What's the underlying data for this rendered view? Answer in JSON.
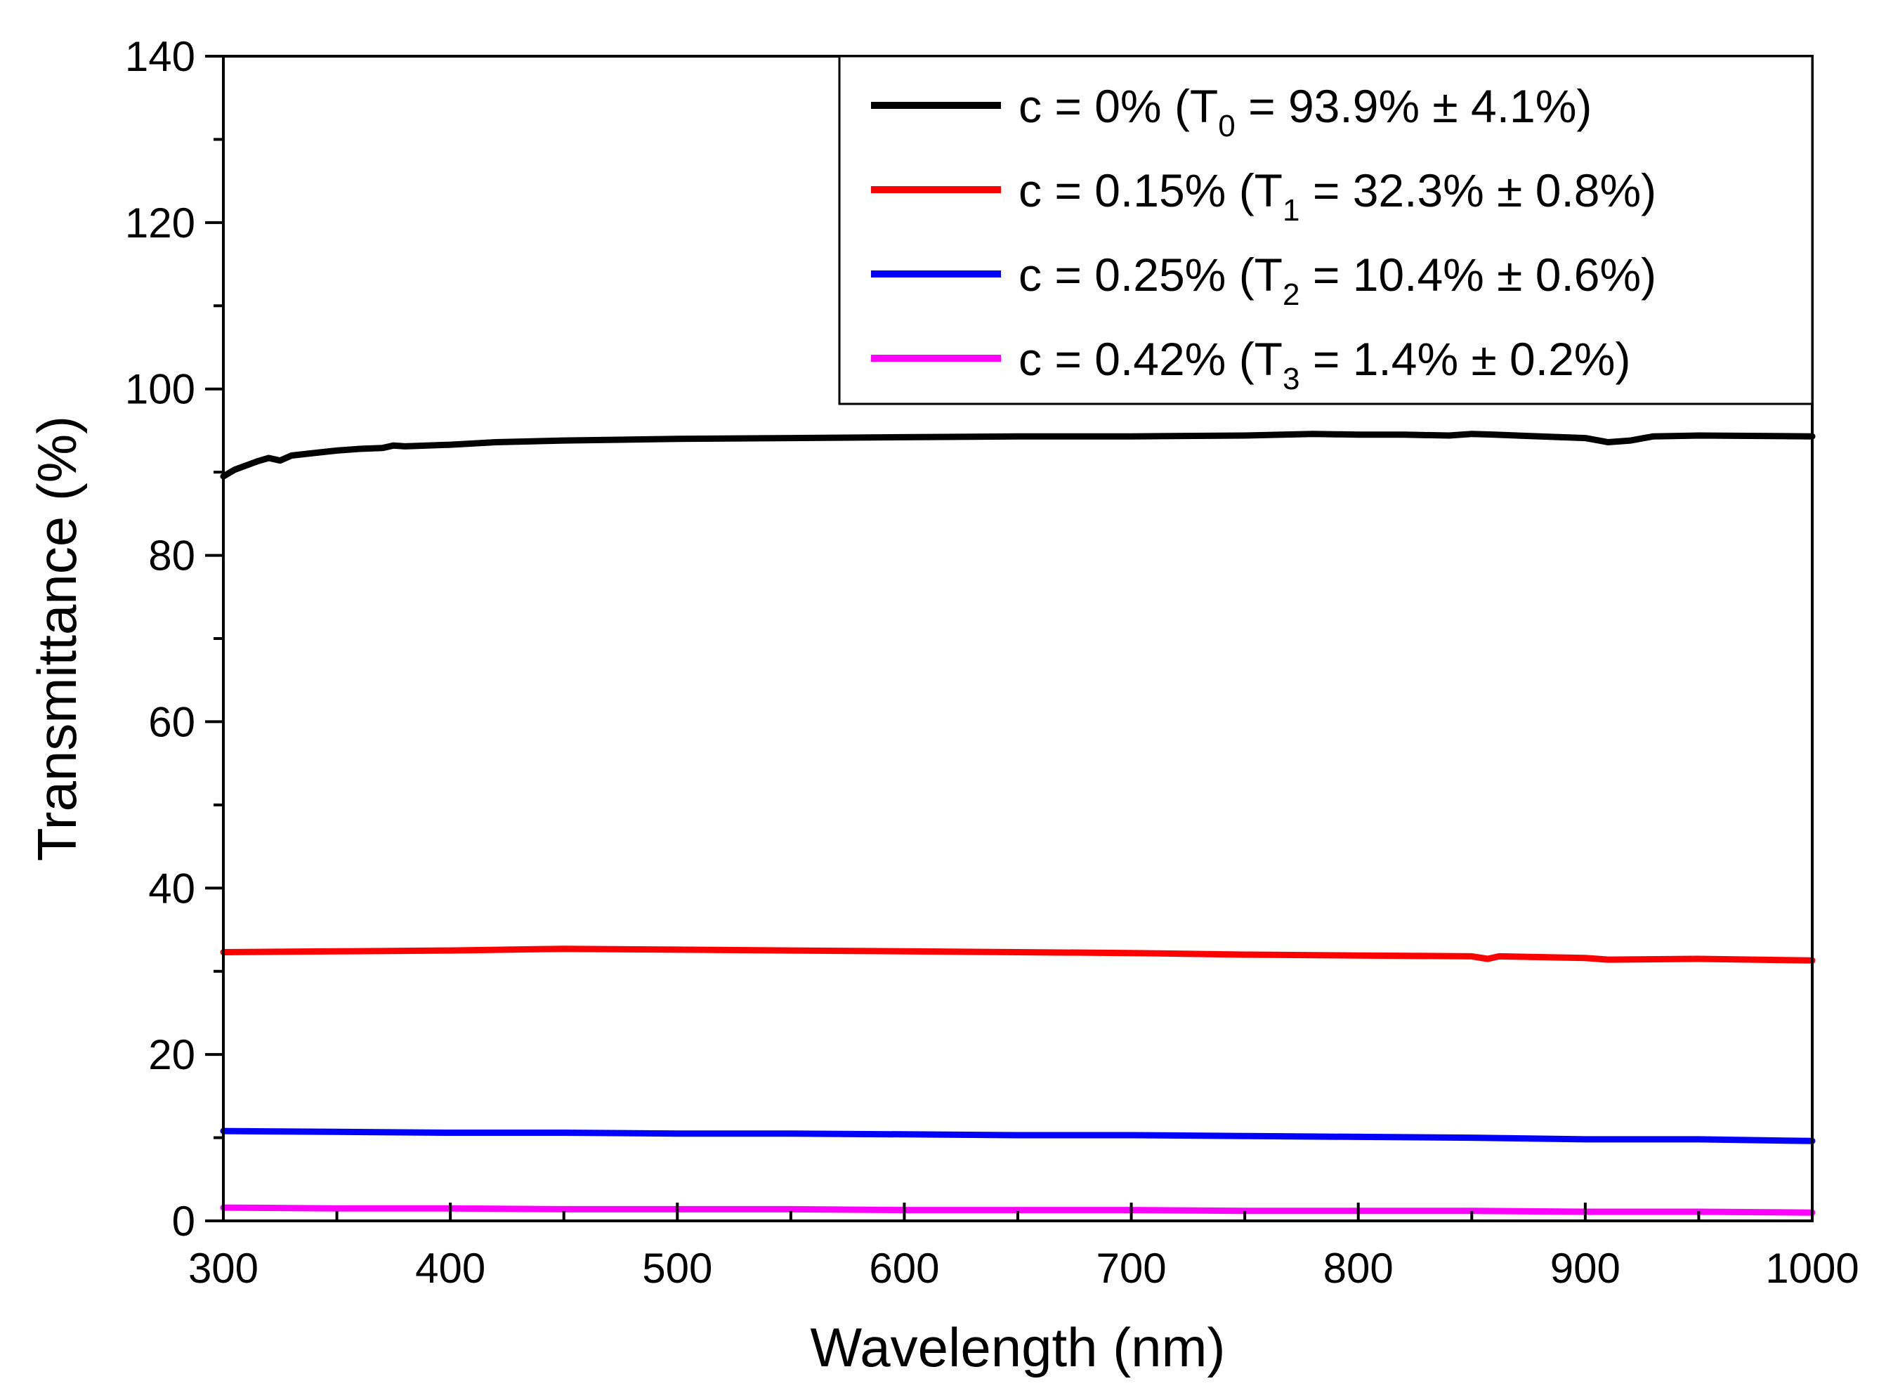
{
  "chart_data": {
    "type": "line",
    "title": "",
    "xlabel": "Wavelength (nm)",
    "ylabel": "Transmittance (%)",
    "xlim": [
      300,
      1000
    ],
    "ylim": [
      0,
      140
    ],
    "xticks": [
      300,
      400,
      500,
      600,
      700,
      800,
      900,
      1000
    ],
    "xtick_labels": [
      "300",
      "400",
      "500",
      "600",
      "700",
      "800",
      "900",
      "1000"
    ],
    "yticks": [
      0,
      20,
      40,
      60,
      80,
      100,
      120,
      140
    ],
    "ytick_labels": [
      "0",
      "20",
      "40",
      "60",
      "80",
      "100",
      "120",
      "140"
    ],
    "grid": false,
    "legend_position": "top-right",
    "series": [
      {
        "name": "c = 0% (T0 = 93.9% ± 4.1%)",
        "legend": {
          "prefix": "c = 0% (T",
          "sub": "0",
          "suffix": " = 93.9% ± 4.1%)"
        },
        "color": "#000000",
        "x": [
          300,
          305,
          310,
          315,
          320,
          325,
          330,
          340,
          350,
          360,
          370,
          375,
          380,
          400,
          420,
          450,
          500,
          550,
          600,
          650,
          700,
          750,
          780,
          800,
          820,
          840,
          850,
          860,
          880,
          900,
          910,
          920,
          930,
          950,
          1000
        ],
        "y": [
          89.5,
          90.3,
          90.8,
          91.3,
          91.7,
          91.4,
          92.0,
          92.3,
          92.6,
          92.8,
          92.9,
          93.2,
          93.1,
          93.3,
          93.6,
          93.8,
          94.0,
          94.1,
          94.2,
          94.3,
          94.3,
          94.4,
          94.6,
          94.5,
          94.5,
          94.4,
          94.6,
          94.5,
          94.3,
          94.1,
          93.6,
          93.8,
          94.3,
          94.4,
          94.3
        ]
      },
      {
        "name": "c = 0.15% (T1 = 32.3% ± 0.8%)",
        "legend": {
          "prefix": "c = 0.15% (T",
          "sub": "1",
          "suffix": " = 32.3% ± 0.8%)"
        },
        "color": "#ff0000",
        "x": [
          300,
          350,
          400,
          450,
          500,
          550,
          600,
          650,
          700,
          750,
          800,
          850,
          857,
          862,
          900,
          910,
          950,
          1000
        ],
        "y": [
          32.3,
          32.4,
          32.5,
          32.7,
          32.6,
          32.5,
          32.4,
          32.3,
          32.2,
          32.0,
          31.9,
          31.8,
          31.5,
          31.8,
          31.6,
          31.4,
          31.5,
          31.3
        ]
      },
      {
        "name": "c = 0.25% (T2 = 10.4% ± 0.6%)",
        "legend": {
          "prefix": "c = 0.25% (T",
          "sub": "2",
          "suffix": " = 10.4% ± 0.6%)"
        },
        "color": "#0000ff",
        "x": [
          300,
          350,
          400,
          450,
          500,
          550,
          600,
          650,
          700,
          750,
          800,
          850,
          900,
          950,
          1000
        ],
        "y": [
          10.8,
          10.7,
          10.6,
          10.6,
          10.5,
          10.5,
          10.4,
          10.3,
          10.3,
          10.2,
          10.1,
          10.0,
          9.8,
          9.8,
          9.6
        ]
      },
      {
        "name": "c = 0.42% (T3 = 1.4% ± 0.2%)",
        "legend": {
          "prefix": "c = 0.42% (T",
          "sub": "3",
          "suffix": " = 1.4% ± 0.2%)"
        },
        "color": "#ff00ff",
        "x": [
          300,
          350,
          400,
          450,
          500,
          550,
          600,
          650,
          700,
          750,
          800,
          850,
          900,
          950,
          1000
        ],
        "y": [
          1.6,
          1.5,
          1.5,
          1.4,
          1.4,
          1.4,
          1.3,
          1.3,
          1.3,
          1.2,
          1.2,
          1.2,
          1.1,
          1.1,
          1.0
        ]
      }
    ]
  }
}
